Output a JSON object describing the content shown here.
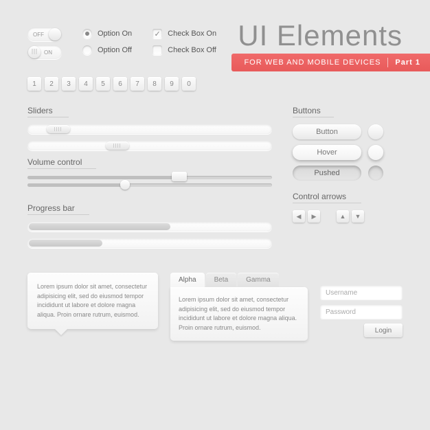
{
  "header": {
    "title": "UI Elements",
    "subtitle": "FOR WEB AND MOBILE DEVICES",
    "part": "Part 1",
    "accent_color": "#e85a5a"
  },
  "toggles": {
    "off_label": "OFF",
    "on_label": "ON"
  },
  "radios": {
    "on": "Option On",
    "off": "Option Off"
  },
  "checks": {
    "on": "Check Box On",
    "off": "Check Box Off"
  },
  "keys": [
    "1",
    "2",
    "3",
    "4",
    "5",
    "6",
    "7",
    "8",
    "9",
    "0"
  ],
  "sections": {
    "sliders": "Sliders",
    "volume": "Volume control",
    "progress": "Progress bar",
    "buttons": "Buttons",
    "arrows": "Control arrows"
  },
  "sliders": {
    "pos1_pct": 8,
    "pos2_pct": 32
  },
  "volume": {
    "fill1_pct": 62,
    "fill2_pct": 40
  },
  "progress": {
    "p1_pct": 58,
    "p2_pct": 30
  },
  "buttons": {
    "normal": "Button",
    "hover": "Hover",
    "pushed": "Pushed"
  },
  "tabs": {
    "a": "Alpha",
    "b": "Beta",
    "c": "Gamma"
  },
  "lorem": "Lorem ipsum dolor sit amet, consectetur adipisicing elit, sed do eiusmod tempor incididunt ut labore et dolore magna aliqua. Proin ornare rutrum, euismod.",
  "login": {
    "user": "Username",
    "pass": "Password",
    "btn": "Login"
  },
  "colors": {
    "bg": "#e8e8e8",
    "text": "#555555"
  }
}
